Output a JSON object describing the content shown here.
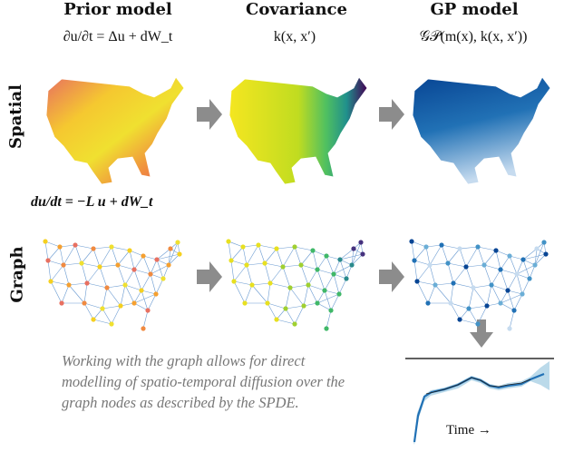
{
  "columns": {
    "prior": {
      "title": "Prior model",
      "equation": "∂u/∂t = Δu + dW_t"
    },
    "covariance": {
      "title": "Covariance",
      "equation": "k(x, x′)"
    },
    "gp": {
      "title": "GP model",
      "equation": "𝒢𝒫(m(x), k(x, x′))"
    }
  },
  "rows": {
    "spatial": "Spatial",
    "graph": "Graph"
  },
  "graph_equation": "du/dt = −L u + dW_t",
  "note": "Working with the graph allows for direct modelling of spatio-temporal diffusion over the graph nodes as described by the SPDE.",
  "time_label": "Time →",
  "colors": {
    "arrow": "#8c8c8c",
    "gp_blue": "#2171b5",
    "prior_orange": "#f08a40",
    "cov_yellow": "#e8e020",
    "cov_purple": "#440154"
  }
}
